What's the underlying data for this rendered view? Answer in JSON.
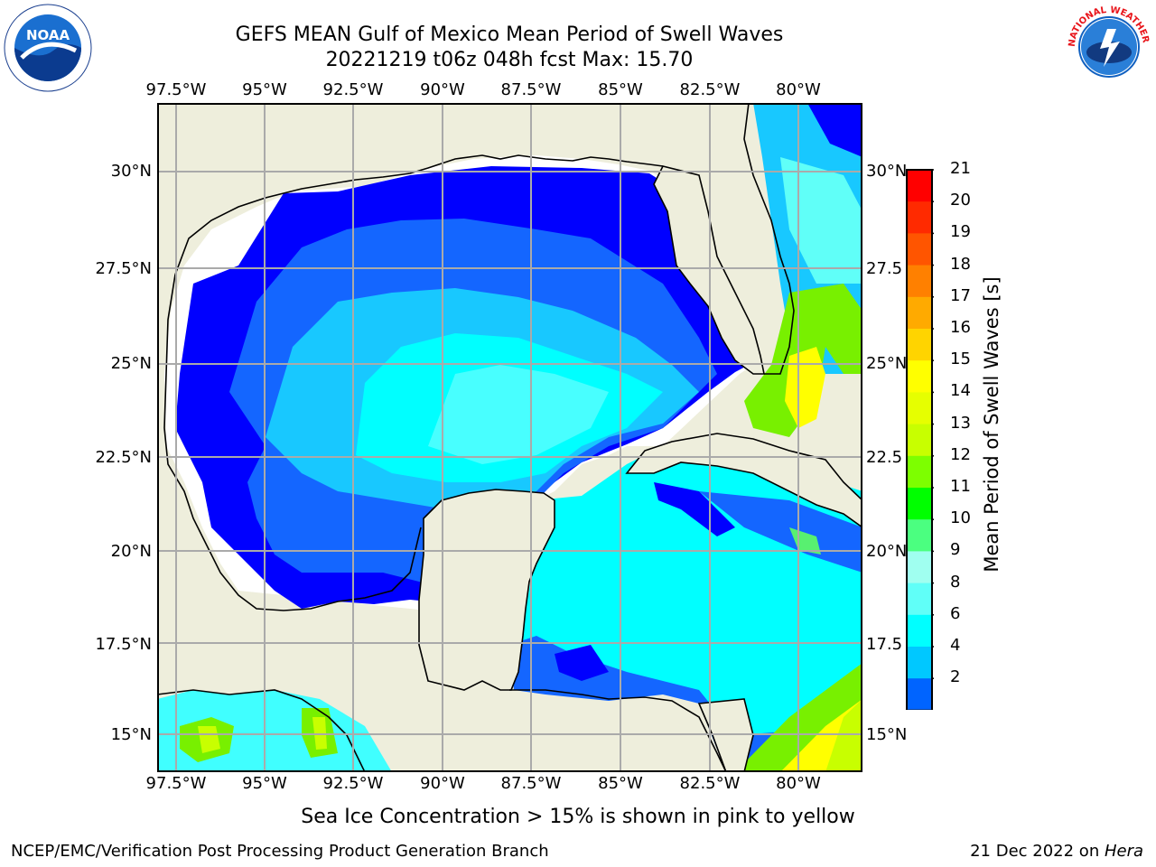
{
  "title": {
    "line1": "GEFS MEAN Gulf of Mexico Mean Period of Swell Waves",
    "line2": "20221219 t06z 048h fcst   Max: 15.70"
  },
  "axes": {
    "lon_ticks_top": [
      "97.5°W",
      "95°W",
      "92.5°W",
      "90°W",
      "87.5°W",
      "85°W",
      "82.5°W",
      "80°W"
    ],
    "lon_ticks_bottom": [
      "97.5°W",
      "95°W",
      "92.5°W",
      "90°W",
      "87.5°W",
      "85°W",
      "82.5°W",
      "80°W"
    ],
    "lat_ticks_left": [
      "30°N",
      "27.5°N",
      "25°N",
      "22.5°N",
      "20°N",
      "17.5°N",
      "15°N"
    ],
    "lat_ticks_right": [
      "30°N",
      "27.5",
      "25°N",
      "22.5",
      "20°N",
      "17.5",
      "15°N"
    ]
  },
  "colorbar": {
    "label": "Mean Period of Swell Waves [s]",
    "ticks": [
      "21",
      "20",
      "19",
      "18",
      "17",
      "16",
      "15",
      "14",
      "13",
      "12",
      "11",
      "10",
      "9",
      "8",
      "6",
      "4",
      "2"
    ],
    "colors_top_to_bottom": [
      "#ff0000",
      "#ff2a00",
      "#ff5500",
      "#ff8000",
      "#ffaa00",
      "#ffd400",
      "#ffff00",
      "#e6ff00",
      "#c8ff00",
      "#7dff00",
      "#00ff00",
      "#4bff80",
      "#a0fff0",
      "#60fff8",
      "#00ffff",
      "#00c8ff",
      "#0064ff"
    ],
    "underflow_color": "#0000ff"
  },
  "map_colors": {
    "land": "#eeeedc",
    "no_data": "#ffffff",
    "deep_blue": "#0000ff",
    "blue": "#0a64ff",
    "sky": "#14c8ff",
    "cyan": "#00ffff",
    "light_cyan": "#40ffff",
    "green": "#78f000",
    "yellow_green": "#c8ff00",
    "yellow": "#ffff00",
    "grid": "#aaaaaa"
  },
  "footer": {
    "note": "Sea Ice Concentration > 15% is shown in pink to yellow",
    "org": "NCEP/EMC/Verification Post Processing Product Generation Branch",
    "date": "21 Dec 2022 on ",
    "machine": "Hera"
  },
  "logos": {
    "noaa": "NOAA",
    "noaa_ring": "NATIONAL OCEANIC AND ATMOSPHERIC ADMINISTRATION · U.S. DEPARTMENT OF COMMERCE",
    "nws_ring": "NATIONAL WEATHER SERVICE"
  }
}
